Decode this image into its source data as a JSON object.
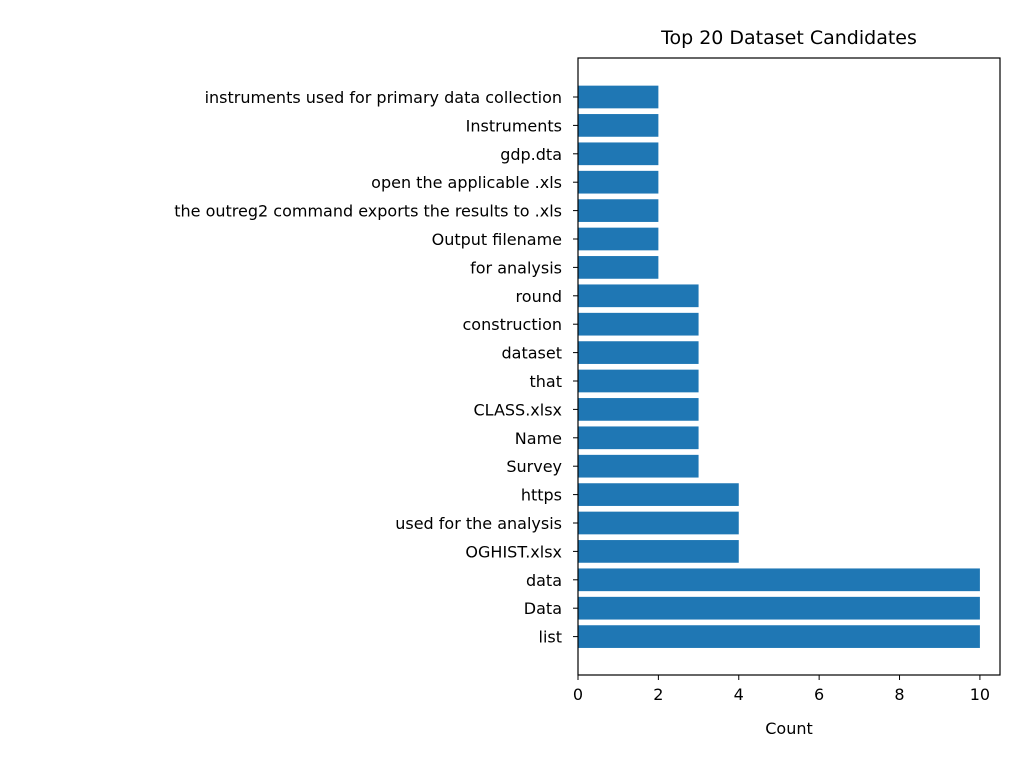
{
  "chart_data": {
    "type": "bar",
    "orientation": "horizontal",
    "title": "Top 20 Dataset Candidates",
    "xlabel": "Count",
    "ylabel": "",
    "xlim": [
      0,
      10.5
    ],
    "xticks": [
      0,
      2,
      4,
      6,
      8,
      10
    ],
    "grid": false,
    "bar_color": "#1f77b4",
    "categories": [
      "instruments used for primary data collection",
      "Instruments",
      "gdp.dta",
      "open the applicable .xls",
      "the outreg2 command exports the results to .xls",
      "Output filename",
      "for analysis",
      "round",
      "construction",
      "dataset",
      "that",
      "CLASS.xlsx",
      "Name",
      "Survey",
      "https",
      "used for the analysis",
      "OGHIST.xlsx",
      "data",
      "Data",
      "list"
    ],
    "values": [
      2,
      2,
      2,
      2,
      2,
      2,
      2,
      3,
      3,
      3,
      3,
      3,
      3,
      3,
      4,
      4,
      4,
      10,
      10,
      10
    ]
  }
}
